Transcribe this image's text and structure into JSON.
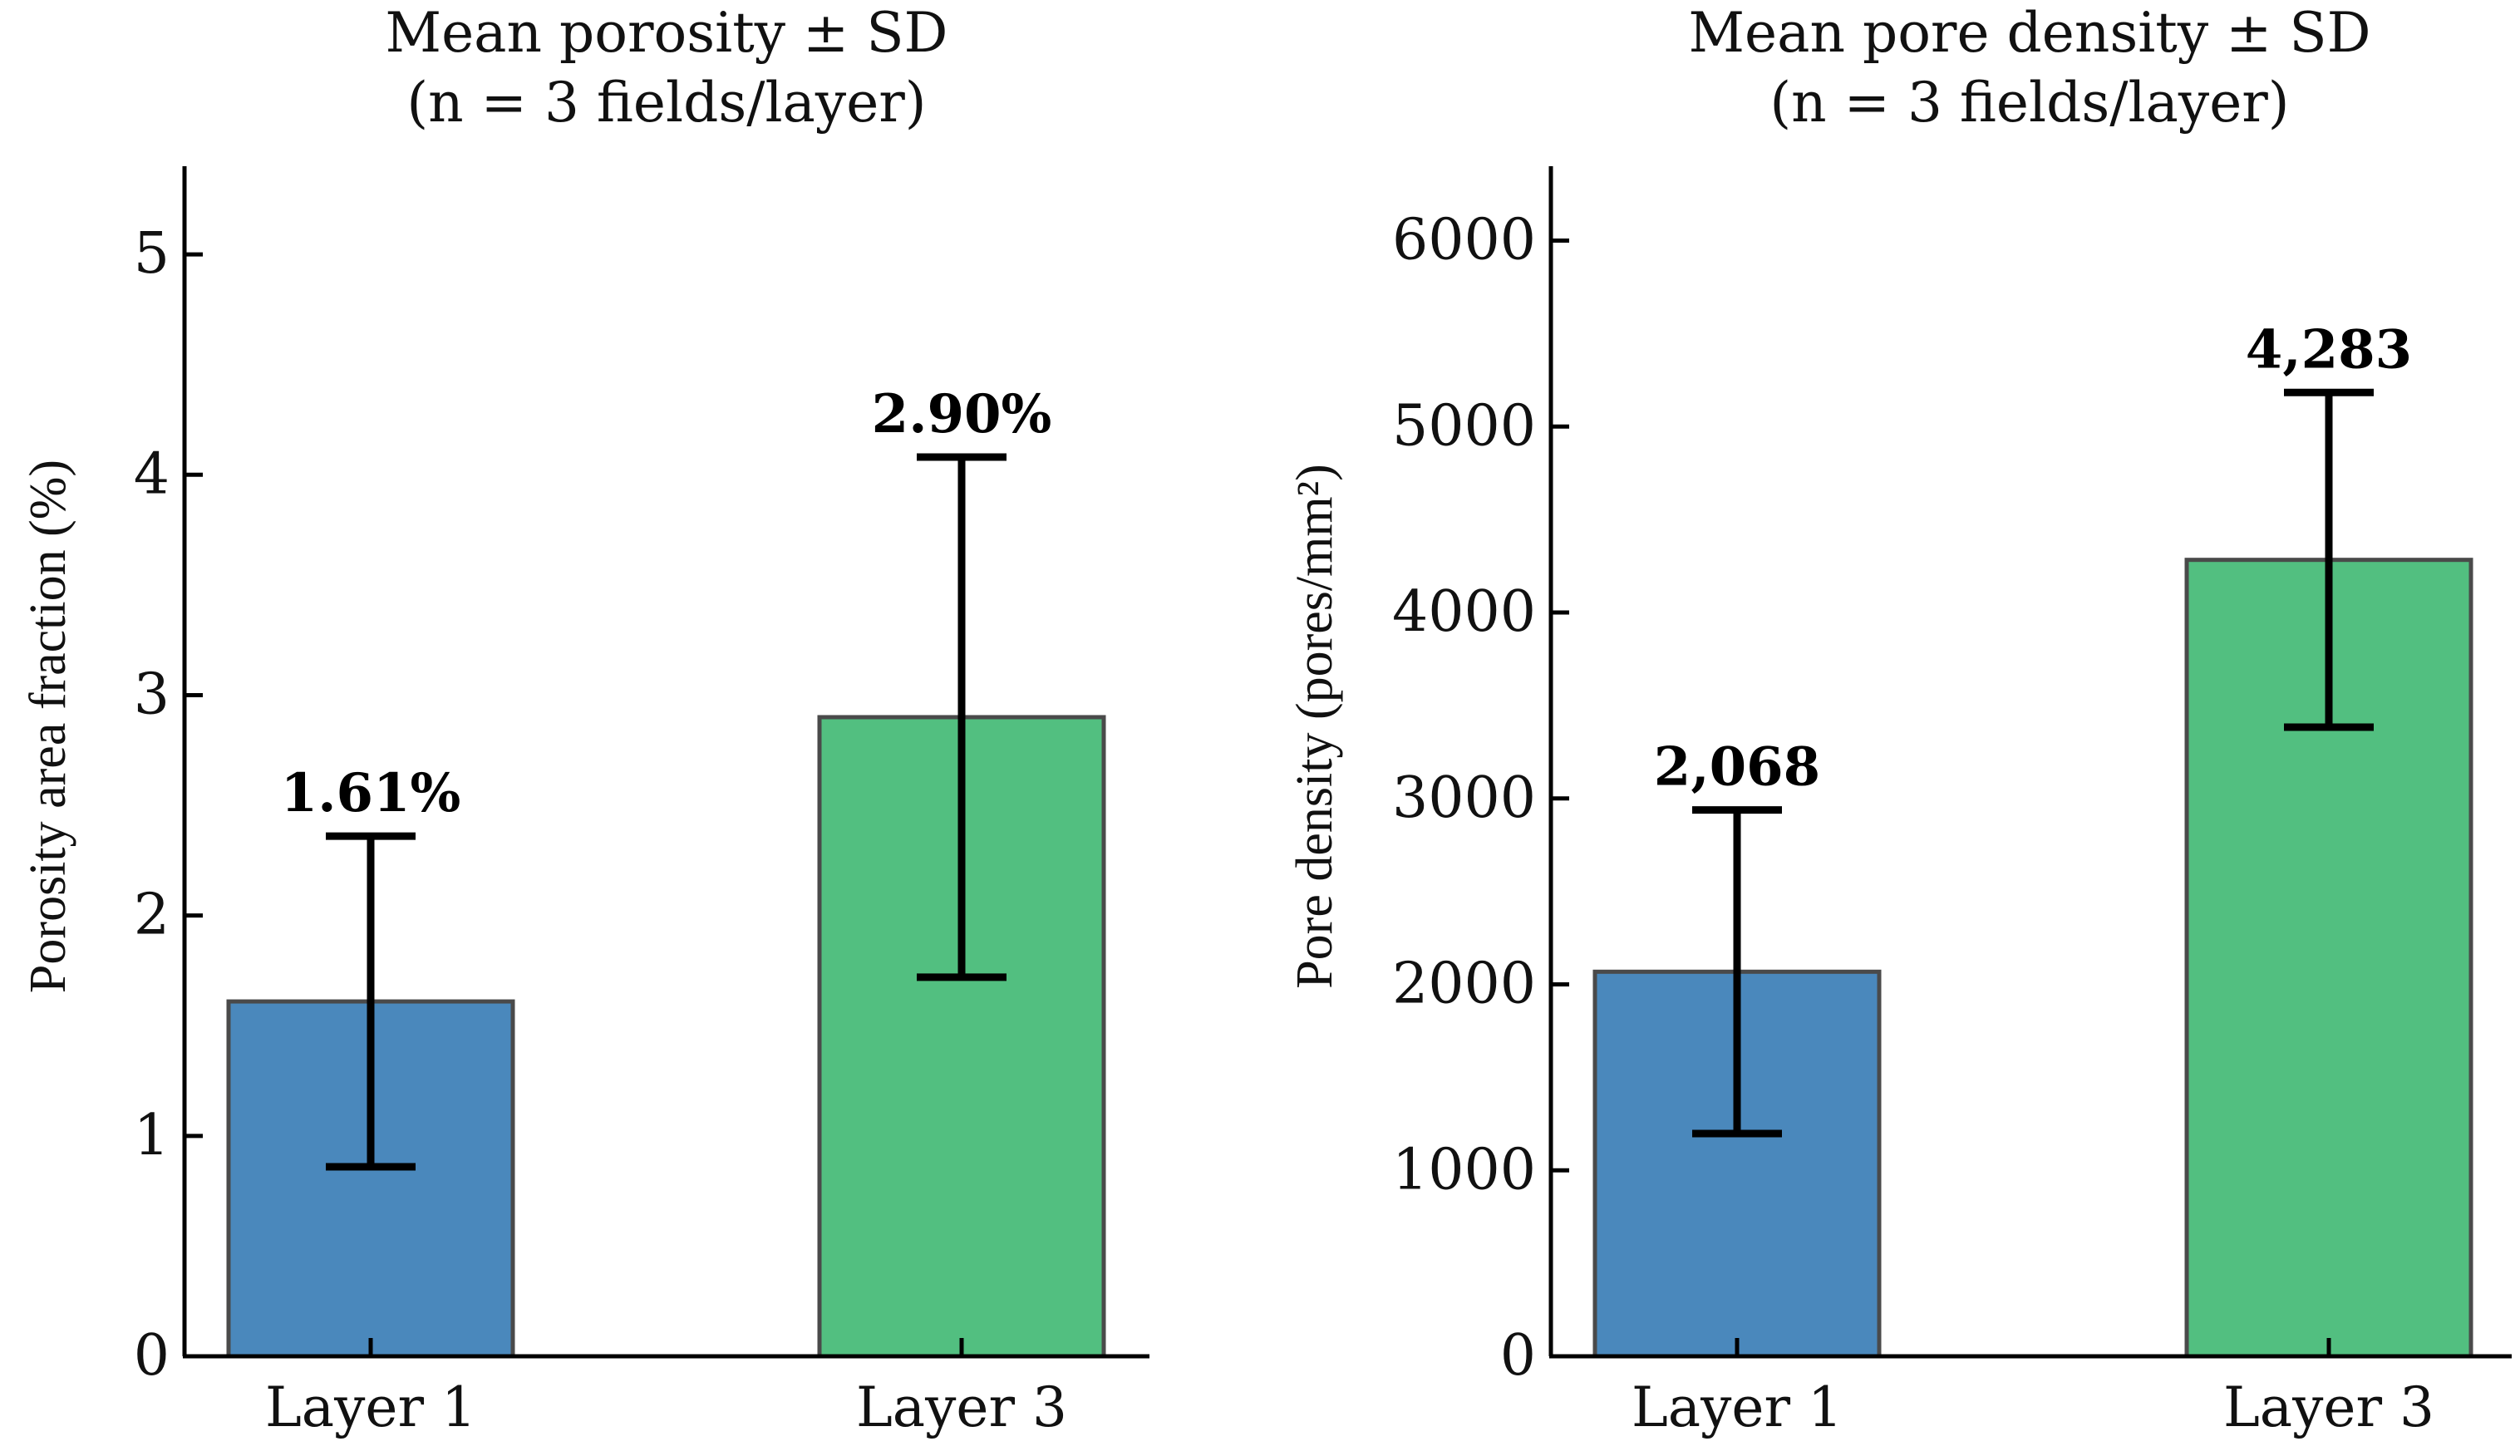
{
  "chart_data": [
    {
      "type": "bar",
      "title_line1": "Mean porosity ± SD",
      "title_line2": "(n = 3 fields/layer)",
      "xlabel": "",
      "ylabel": "Porosity area fraction (%)",
      "categories": [
        "Layer 1",
        "Layer 3"
      ],
      "values": [
        1.61,
        2.9
      ],
      "sd": [
        0.75,
        1.18
      ],
      "value_labels": [
        "1.61%",
        "2.90%"
      ],
      "bar_colors": [
        "#4a88bc",
        "#52bf80"
      ],
      "ylim": [
        0,
        5.4
      ],
      "yticks": [
        0,
        1,
        2,
        3,
        4,
        5
      ],
      "ytick_labels": [
        "0",
        "1",
        "2",
        "3",
        "4",
        "5"
      ],
      "grid": false
    },
    {
      "type": "bar",
      "title_line1": "Mean pore density ± SD",
      "title_line2": "(n = 3 fields/layer)",
      "xlabel": "",
      "ylabel": "Pore density (pores/mm²)",
      "categories": [
        "Layer 1",
        "Layer 3"
      ],
      "values": [
        2068,
        4283
      ],
      "sd": [
        870,
        900
      ],
      "value_labels": [
        "2,068",
        "4,283"
      ],
      "bar_colors": [
        "#4a88bc",
        "#52bf80"
      ],
      "ylim": [
        0,
        6400
      ],
      "yticks": [
        0,
        1000,
        2000,
        3000,
        4000,
        5000,
        6000
      ],
      "ytick_labels": [
        "0",
        "1000",
        "2000",
        "3000",
        "4000",
        "5000",
        "6000"
      ],
      "grid": false
    }
  ]
}
